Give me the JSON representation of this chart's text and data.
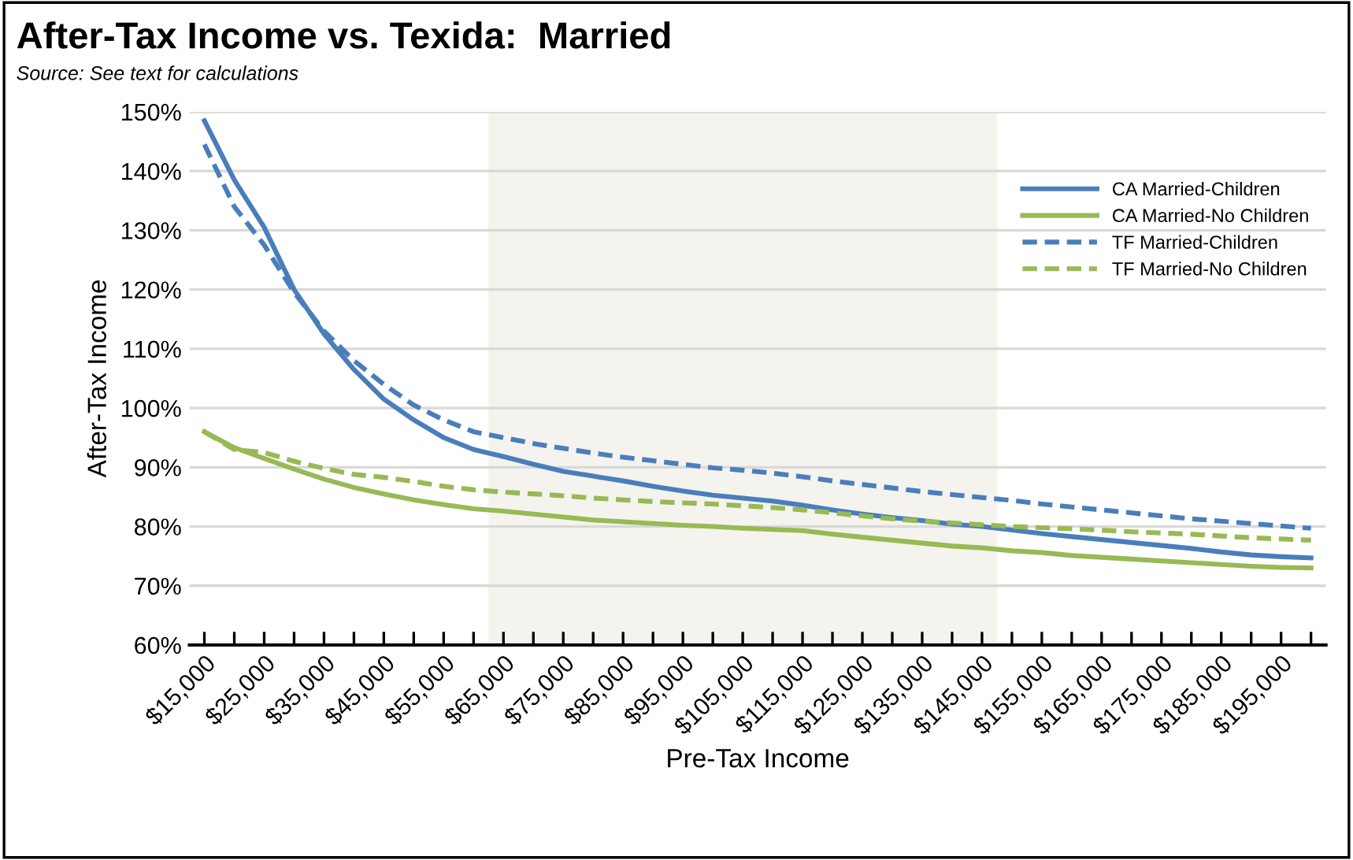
{
  "chart_data": {
    "type": "line",
    "title": "After-Tax Income vs. Texida:  Married",
    "subtitle": "Source: See text for calculations",
    "xlabel": "Pre-Tax Income",
    "ylabel": "After-Tax Income",
    "categories": [
      "$15,000",
      null,
      "$25,000",
      null,
      "$35,000",
      null,
      "$45,000",
      null,
      "$55,000",
      null,
      "$65,000",
      null,
      "$75,000",
      null,
      "$85,000",
      null,
      "$95,000",
      null,
      "$105,000",
      null,
      "$115,000",
      null,
      "$125,000",
      null,
      "$135,000",
      null,
      "$145,000",
      null,
      "$155,000",
      null,
      "$165,000",
      null,
      "$175,000",
      null,
      "$185,000",
      null,
      "$195,000",
      null
    ],
    "series": [
      {
        "name": "CA Married-Children",
        "color": "#4a7ebb",
        "line_style": "solid",
        "values": [
          148.5,
          138.5,
          130.5,
          120,
          112.5,
          106.5,
          101.5,
          98,
          95,
          93,
          91.8,
          90.5,
          89.3,
          88.5,
          87.7,
          86.8,
          86,
          85.3,
          84.8,
          84.3,
          83.6,
          82.8,
          82.1,
          81.5,
          81,
          80.4,
          80,
          79.4,
          78.8,
          78.3,
          77.8,
          77.3,
          76.8,
          76.3,
          75.7,
          75.2,
          74.9,
          74.7
        ]
      },
      {
        "name": "CA Married-No Children",
        "color": "#98b954",
        "line_style": "solid",
        "values": [
          96,
          93.3,
          91.5,
          89.7,
          88,
          86.6,
          85.5,
          84.5,
          83.7,
          83,
          82.6,
          82.1,
          81.6,
          81.1,
          80.8,
          80.5,
          80.2,
          80,
          79.7,
          79.5,
          79.3,
          78.7,
          78.2,
          77.7,
          77.2,
          76.7,
          76.4,
          75.9,
          75.6,
          75.1,
          74.8,
          74.5,
          74.2,
          73.9,
          73.6,
          73.3,
          73.1,
          73
        ]
      },
      {
        "name": "TF Married-Children",
        "color": "#4a7ebb",
        "line_style": "dashed",
        "values": [
          144.5,
          134,
          127.5,
          119.5,
          113,
          108,
          104,
          100.5,
          98,
          96,
          95,
          94,
          93.2,
          92.4,
          91.7,
          91.1,
          90.5,
          89.9,
          89.5,
          89,
          88.4,
          87.7,
          87.1,
          86.5,
          85.9,
          85.4,
          84.9,
          84.4,
          83.8,
          83.3,
          82.8,
          82.3,
          81.8,
          81.3,
          80.9,
          80.5,
          80.1,
          79.7
        ]
      },
      {
        "name": "TF Married-No Children",
        "color": "#98b954",
        "line_style": "dashed",
        "values": [
          96,
          93,
          92.5,
          91,
          89.8,
          88.8,
          88.3,
          87.6,
          86.8,
          86.2,
          85.8,
          85.5,
          85.2,
          84.8,
          84.5,
          84.2,
          84,
          83.8,
          83.5,
          83.2,
          82.8,
          82.3,
          81.8,
          81.3,
          80.9,
          80.6,
          80.3,
          80,
          79.8,
          79.6,
          79.4,
          79.1,
          78.9,
          78.7,
          78.4,
          78.1,
          77.9,
          77.7
        ]
      }
    ],
    "ylim": [
      60,
      150
    ],
    "yticks": [
      {
        "value": 60,
        "label": "60%"
      },
      {
        "value": 70,
        "label": "70%"
      },
      {
        "value": 80,
        "label": "80%"
      },
      {
        "value": 90,
        "label": "90%"
      },
      {
        "value": 100,
        "label": "100%"
      },
      {
        "value": 110,
        "label": "110%"
      },
      {
        "value": 120,
        "label": "120%"
      },
      {
        "value": 130,
        "label": "130%"
      },
      {
        "value": 140,
        "label": "140%"
      },
      {
        "value": 150,
        "label": "150%"
      }
    ],
    "bands": [
      {
        "axis": "x",
        "from": "$65,000",
        "to": "$145,000",
        "color": "#f4f3ee"
      }
    ],
    "grid": "y",
    "legend": "top right"
  }
}
